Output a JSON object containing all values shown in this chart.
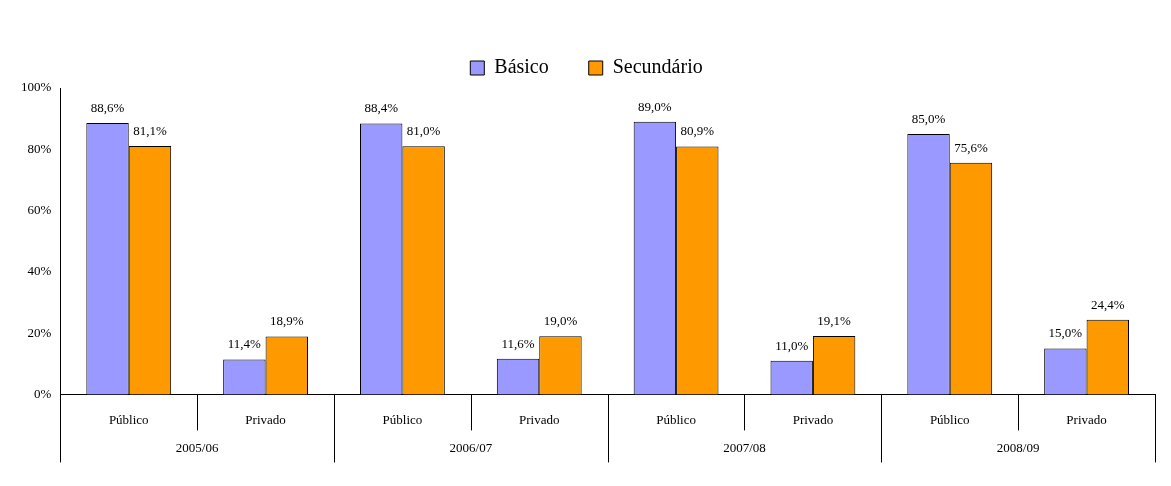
{
  "chart_data": {
    "type": "bar",
    "categories": [
      "Público",
      "Privado",
      "Público",
      "Privado",
      "Público",
      "Privado",
      "Público",
      "Privado"
    ],
    "series": [
      {
        "name": "Básico",
        "color": "#9999ff",
        "values": [
          88.6,
          11.4,
          88.4,
          11.6,
          89.0,
          11.0,
          85.0,
          15.0
        ],
        "value_labels": [
          "88,6%",
          "11,4%",
          "88,4%",
          "11,6%",
          "89,0%",
          "11,0%",
          "85,0%",
          "15,0%"
        ]
      },
      {
        "name": "Secundário",
        "color": "#ff9900",
        "values": [
          81.1,
          18.9,
          81.0,
          19.0,
          80.9,
          19.1,
          75.6,
          24.4
        ],
        "value_labels": [
          "81,1%",
          "18,9%",
          "81,0%",
          "19,0%",
          "80,9%",
          "19,1%",
          "75,6%",
          "24,4%"
        ]
      }
    ],
    "ylim": [
      0,
      100
    ],
    "yticks": [
      {
        "value": 0,
        "label": "0%"
      },
      {
        "value": 20,
        "label": "20%"
      },
      {
        "value": 40,
        "label": "40%"
      },
      {
        "value": 60,
        "label": "60%"
      },
      {
        "value": 80,
        "label": "80%"
      },
      {
        "value": 100,
        "label": "100%"
      }
    ],
    "annotations": [
      "2005/06",
      "2006/07",
      "2007/08",
      "2008/09"
    ],
    "legend": "top",
    "grid": false
  }
}
